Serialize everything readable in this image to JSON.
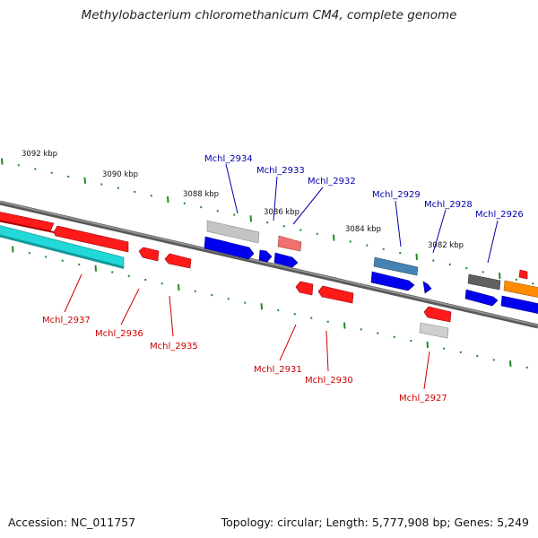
{
  "title": "Methylobacterium chloromethanicum CM4, complete genome",
  "accession": "Accession: NC_011757",
  "summary": "Topology: circular; Length: 5,777,908 bp; Genes: 5,249",
  "colors": {
    "upper_label": "#0000aa",
    "lower_label": "#cc0000",
    "tick": "#228b22",
    "backbone": "#707070"
  },
  "kbp_labels": [
    "3092 kbp",
    "3090 kbp",
    "3088 kbp",
    "3086 kbp",
    "3084 kbp",
    "3082 kbp"
  ],
  "genes_upper": [
    {
      "label": "Mchl_2934"
    },
    {
      "label": "Mchl_2933"
    },
    {
      "label": "Mchl_2932"
    },
    {
      "label": "Mchl_2929"
    },
    {
      "label": "Mchl_2928"
    },
    {
      "label": "Mchl_2926"
    }
  ],
  "genes_lower": [
    {
      "label": "Mchl_2937"
    },
    {
      "label": "Mchl_2936"
    },
    {
      "label": "Mchl_2935"
    },
    {
      "label": "Mchl_2931"
    },
    {
      "label": "Mchl_2930"
    },
    {
      "label": "Mchl_2927"
    }
  ]
}
